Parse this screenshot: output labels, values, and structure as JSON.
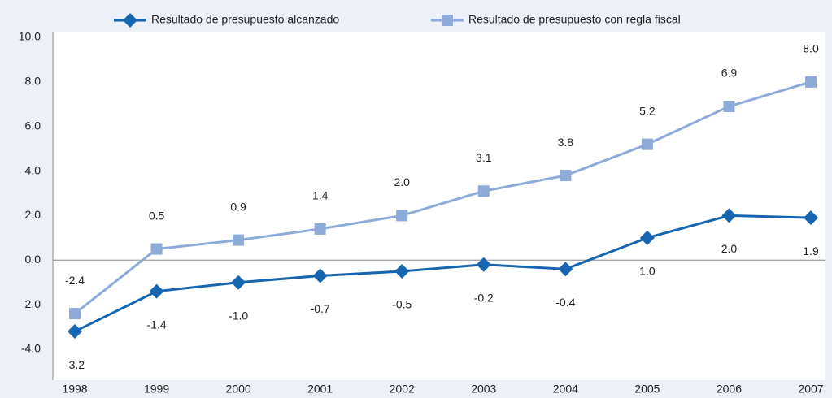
{
  "chart_data": {
    "type": "line",
    "categories": [
      "1998",
      "1999",
      "2000",
      "2001",
      "2002",
      "2003",
      "2004",
      "2005",
      "2006",
      "2007"
    ],
    "series": [
      {
        "name": "Resultado de presupuesto alcanzado",
        "color": "#1565b0",
        "marker": "diamond",
        "values": [
          -3.2,
          -1.4,
          -1.0,
          -0.7,
          -0.5,
          -0.2,
          -0.4,
          1.0,
          2.0,
          1.9
        ],
        "value_labels": [
          "-3.2",
          "-1.4",
          "-1.0",
          "-0.7",
          "-0.5",
          "-0.2",
          "-0.4",
          "1.0",
          "2.0",
          "1.9"
        ]
      },
      {
        "name": "Resultado de presupuesto con regla fiscal",
        "color": "#8eaad8",
        "marker": "square",
        "values": [
          -2.4,
          0.5,
          0.9,
          1.4,
          2.0,
          3.1,
          3.8,
          5.2,
          6.9,
          8.0
        ],
        "value_labels": [
          "-2.4",
          "0.5",
          "0.9",
          "1.4",
          "2.0",
          "3.1",
          "3.8",
          "5.2",
          "6.9",
          "8.0"
        ]
      }
    ],
    "ylim": [
      -4,
      10
    ],
    "yticks": [
      {
        "value": -4,
        "label": "-4.0"
      },
      {
        "value": -2,
        "label": "-2.0"
      },
      {
        "value": 0,
        "label": "0.0"
      },
      {
        "value": 2,
        "label": "2.0"
      },
      {
        "value": 4,
        "label": "4.0"
      },
      {
        "value": 6,
        "label": "6.0"
      },
      {
        "value": 8,
        "label": "8.0"
      },
      {
        "value": 10,
        "label": "10.0"
      }
    ],
    "grid": false
  }
}
